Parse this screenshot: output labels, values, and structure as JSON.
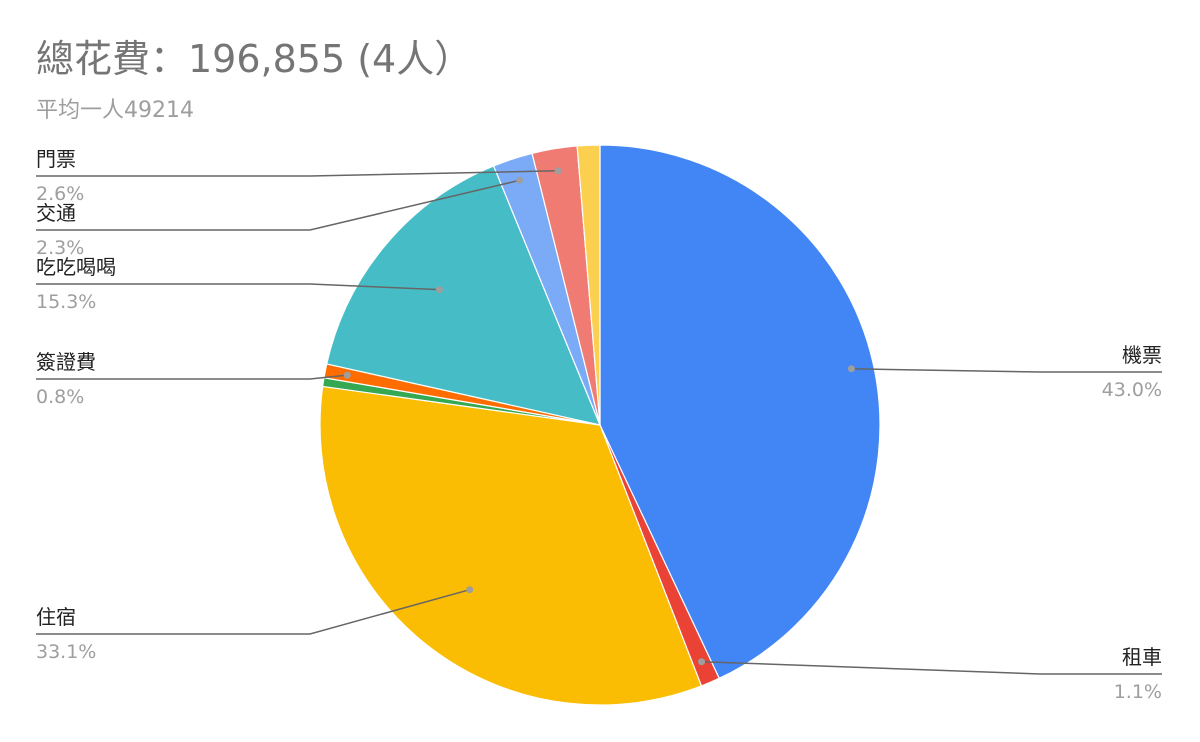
{
  "chart_data": {
    "type": "pie",
    "title": "總花費：196,855 (4人）",
    "subtitle": "平均一人49214",
    "slices": [
      {
        "label": "機票",
        "percent": 43.0,
        "percent_label": "43.0%",
        "color": "#4285f4"
      },
      {
        "label": "租車",
        "percent": 1.1,
        "percent_label": "1.1%",
        "color": "#ea4335"
      },
      {
        "label": "住宿",
        "percent": 33.1,
        "percent_label": "33.1%",
        "color": "#fbbc04"
      },
      {
        "label": "",
        "percent": 0.5,
        "percent_label": "",
        "color": "#34a853"
      },
      {
        "label": "簽證費",
        "percent": 0.8,
        "percent_label": "0.8%",
        "color": "#ff6d01"
      },
      {
        "label": "吃吃喝喝",
        "percent": 15.3,
        "percent_label": "15.3%",
        "color": "#46bdc6"
      },
      {
        "label": "交通",
        "percent": 2.3,
        "percent_label": "2.3%",
        "color": "#7baaf7"
      },
      {
        "label": "門票",
        "percent": 2.6,
        "percent_label": "2.6%",
        "color": "#f07b72"
      },
      {
        "label": "",
        "percent": 1.3,
        "percent_label": "",
        "color": "#fcd04f"
      }
    ]
  }
}
